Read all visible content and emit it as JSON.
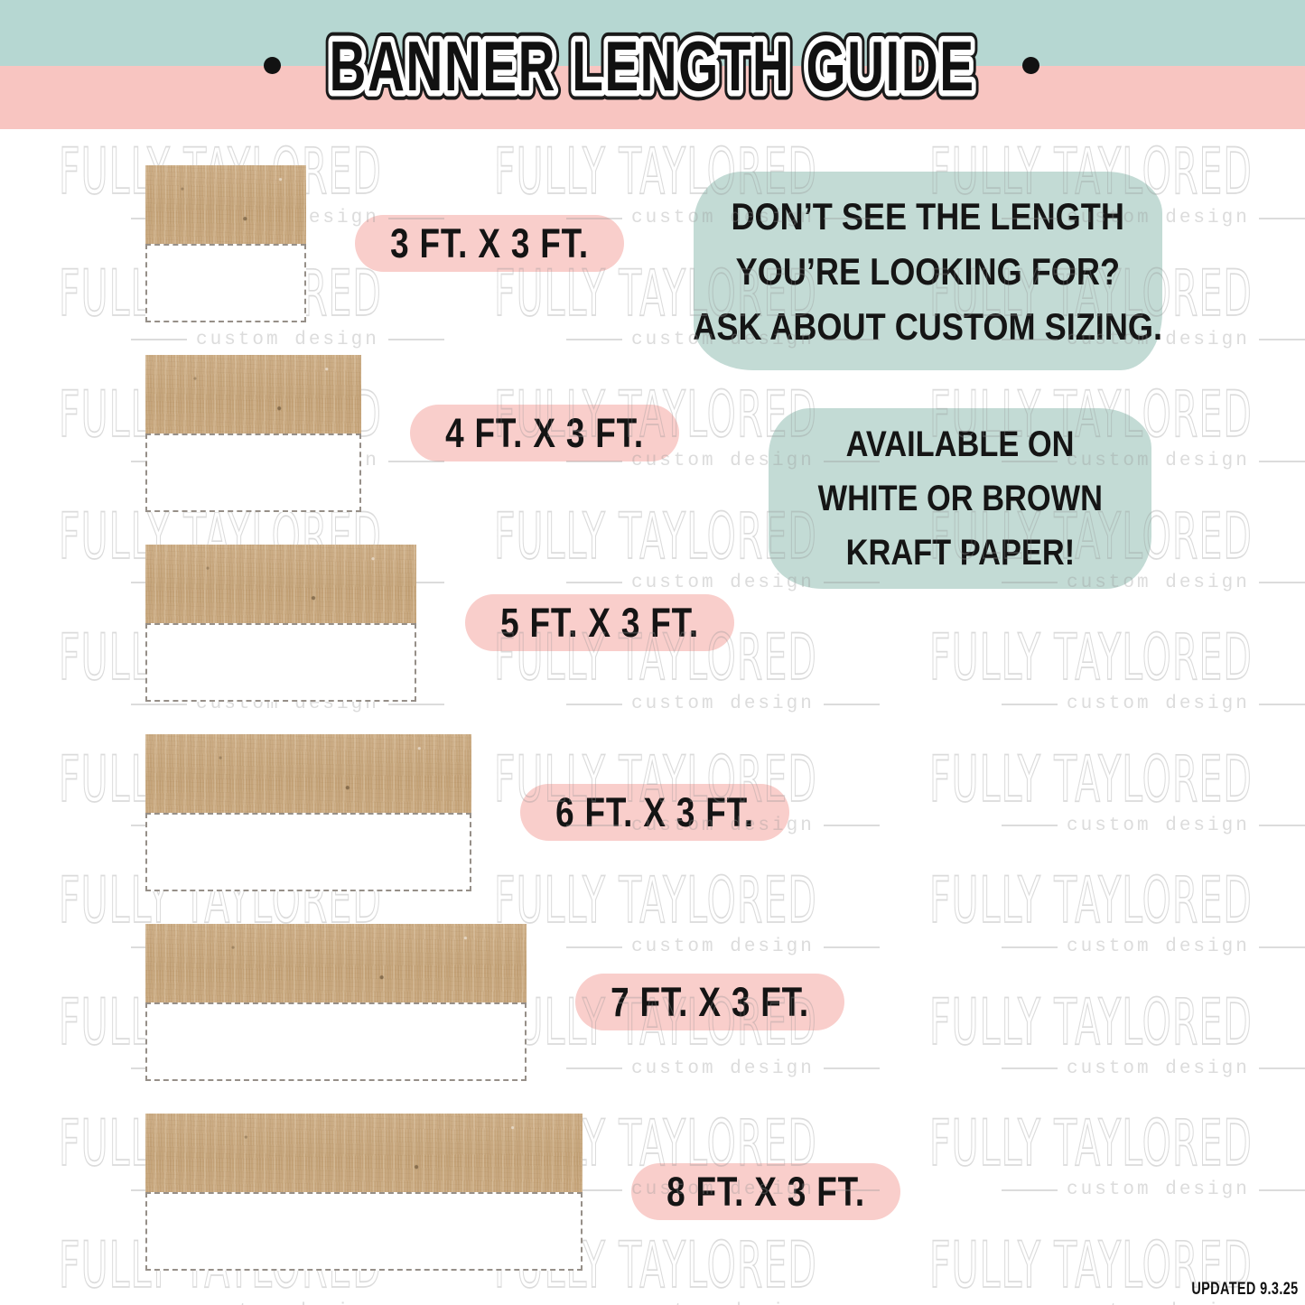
{
  "header": {
    "title": "BANNER LENGTH GUIDE",
    "left_dot": "•",
    "right_dot": "•"
  },
  "watermark": {
    "brand": "FULLY TAYLORED",
    "tagline": "custom design"
  },
  "rows": [
    {
      "feet": 3,
      "label": "3 FT. X 3 FT."
    },
    {
      "feet": 4,
      "label": "4 FT. X 3 FT."
    },
    {
      "feet": 5,
      "label": "5 FT. X 3 FT."
    },
    {
      "feet": 6,
      "label": "6 FT. X 3 FT."
    },
    {
      "feet": 7,
      "label": "7 FT. X 3 FT."
    },
    {
      "feet": 8,
      "label": "8 FT. X 3 FT."
    }
  ],
  "callouts": [
    {
      "lines": [
        "DON’T SEE THE LENGTH",
        "YOU’RE LOOKING FOR?",
        "ASK ABOUT CUSTOM SIZING."
      ]
    },
    {
      "lines": [
        "AVAILABLE ON",
        "WHITE OR BROWN",
        "KRAFT PAPER!"
      ]
    }
  ],
  "footer": {
    "updated": "UPDATED 9.3.25"
  },
  "colors": {
    "header_mint": "#b6d7d2",
    "header_pink": "#f8c5c1",
    "pill_pink": "#f9cecb",
    "blob_mint": "#c3dbd5",
    "kraft_tan": "#c5a47a",
    "text_black": "#141414",
    "watermark_gray": "#e2e2e2"
  }
}
